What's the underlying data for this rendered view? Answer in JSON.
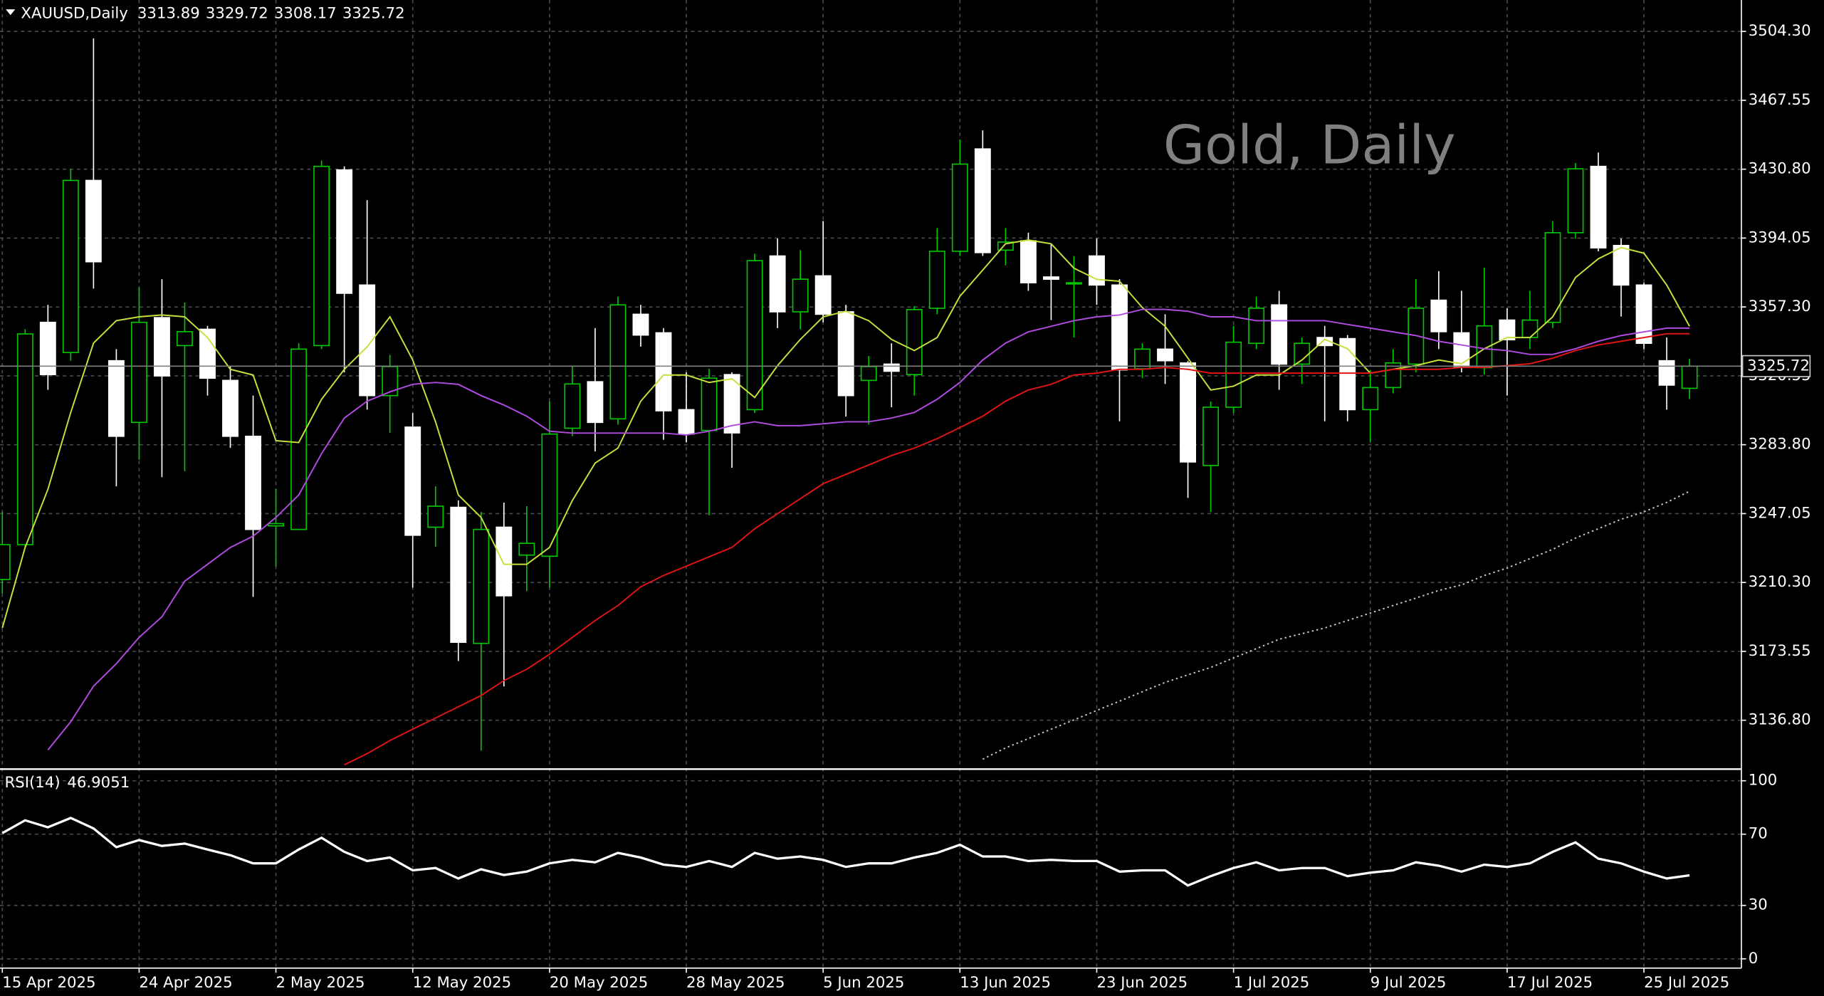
{
  "chart_data": [
    {
      "type": "candlestick",
      "symbol": "XAUUSD,Daily",
      "watermark": "Gold, Daily",
      "categories": [
        "15 Apr 2025",
        null,
        null,
        null,
        null,
        null,
        "24 Apr 2025",
        null,
        null,
        null,
        null,
        null,
        "2 May 2025",
        null,
        null,
        null,
        null,
        null,
        "12 May 2025",
        null,
        null,
        null,
        null,
        null,
        "20 May 2025",
        null,
        null,
        null,
        null,
        null,
        "28 May 2025",
        null,
        null,
        null,
        null,
        null,
        "5 Jun 2025",
        null,
        null,
        null,
        null,
        null,
        "13 Jun 2025",
        null,
        null,
        null,
        null,
        null,
        "23 Jun 2025",
        null,
        null,
        null,
        null,
        null,
        "1 Jul 2025",
        null,
        null,
        null,
        null,
        null,
        "9 Jul 2025",
        null,
        null,
        null,
        null,
        null,
        "17 Jul 2025",
        null,
        null,
        null,
        null,
        null,
        "25 Jul 2025",
        null,
        null
      ],
      "open": [
        3211.9,
        3230.5,
        3349.1,
        3333.0,
        3424.8,
        3328.6,
        3295.7,
        3351.6,
        3336.7,
        3345.4,
        3318.1,
        3288.3,
        3240.5,
        3238.6,
        3336.7,
        3430.4,
        3369.0,
        3310.0,
        3293.2,
        3239.8,
        3250.4,
        3177.8,
        3239.8,
        3224.9,
        3224.3,
        3292.6,
        3317.4,
        3297.6,
        3353.4,
        3343.5,
        3302.5,
        3291.4,
        3321.2,
        3302.5,
        3384.5,
        3354.7,
        3373.9,
        3354.7,
        3318.1,
        3326.8,
        3321.2,
        3356.6,
        3387.0,
        3441.6,
        3387.6,
        3392.6,
        3373.3,
        3369.6,
        3384.5,
        3369.0,
        3324.3,
        3334.8,
        3327.4,
        3272.7,
        3303.8,
        3337.9,
        3358.4,
        3326.8,
        3341.0,
        3340.4,
        3302.5,
        3314.3,
        3326.8,
        3360.9,
        3343.5,
        3324.9,
        3350.3,
        3341.0,
        3349.1,
        3396.9,
        3432.3,
        3390.1,
        3369.0,
        3328.6,
        3313.89
      ],
      "high": [
        3247.9,
        3345.4,
        3358.4,
        3431.0,
        3500.6,
        3334.8,
        3367.7,
        3372.1,
        3359.7,
        3347.2,
        3325.5,
        3310.0,
        3260.3,
        3337.9,
        3435.4,
        3432.3,
        3414.3,
        3331.7,
        3300.7,
        3261.6,
        3254.1,
        3247.9,
        3252.9,
        3251.0,
        3306.9,
        3325.5,
        3346.0,
        3362.8,
        3358.4,
        3346.0,
        3322.4,
        3324.3,
        3322.4,
        3385.7,
        3393.8,
        3387.6,
        3403.1,
        3358.4,
        3331.1,
        3337.9,
        3357.8,
        3399.4,
        3446.6,
        3451.5,
        3399.4,
        3396.9,
        3390.7,
        3384.5,
        3393.8,
        3372.1,
        3337.9,
        3353.4,
        3328.6,
        3306.9,
        3347.2,
        3362.8,
        3365.9,
        3341.0,
        3347.2,
        3342.3,
        3323.7,
        3334.8,
        3372.1,
        3376.4,
        3365.9,
        3378.3,
        3356.6,
        3365.9,
        3403.1,
        3434.1,
        3439.7,
        3393.8,
        3370.2,
        3341.0,
        3329.72
      ],
      "low": [
        3204.5,
        3229.3,
        3313.1,
        3328.6,
        3367.1,
        3261.6,
        3275.8,
        3266.5,
        3269.6,
        3310.0,
        3282.1,
        3202.6,
        3218.7,
        3238.6,
        3334.8,
        3322.4,
        3302.5,
        3290.1,
        3207.6,
        3229.3,
        3168.4,
        3120.6,
        3154.8,
        3205.7,
        3207.6,
        3288.3,
        3280.2,
        3294.5,
        3336.1,
        3286.4,
        3285.2,
        3246.1,
        3271.5,
        3300.7,
        3346.0,
        3345.4,
        3349.1,
        3298.8,
        3294.5,
        3303.8,
        3310.0,
        3353.4,
        3384.5,
        3384.5,
        3379.5,
        3365.9,
        3350.3,
        3341.0,
        3358.4,
        3296.3,
        3319.3,
        3316.2,
        3255.4,
        3247.9,
        3300.7,
        3334.8,
        3313.1,
        3316.2,
        3296.3,
        3296.3,
        3285.2,
        3311.2,
        3322.4,
        3334.8,
        3322.4,
        3321.2,
        3310.0,
        3334.8,
        3346.0,
        3393.8,
        3387.0,
        3352.2,
        3334.8,
        3302.5,
        3308.17
      ],
      "close": [
        3230.5,
        3342.9,
        3321.2,
        3424.8,
        3381.4,
        3288.3,
        3349.1,
        3320.5,
        3344.1,
        3319.3,
        3288.3,
        3238.6,
        3241.7,
        3334.8,
        3432.3,
        3364.6,
        3310.0,
        3325.5,
        3235.5,
        3251.0,
        3178.4,
        3238.6,
        3203.2,
        3231.2,
        3289.5,
        3316.2,
        3295.7,
        3358.4,
        3342.3,
        3301.9,
        3289.5,
        3319.3,
        3290.1,
        3382.0,
        3354.7,
        3372.1,
        3353.4,
        3310.0,
        3325.5,
        3323.0,
        3355.9,
        3387.0,
        3433.5,
        3386.3,
        3391.9,
        3370.2,
        3372.1,
        3370.2,
        3369.0,
        3323.7,
        3334.8,
        3328.6,
        3274.6,
        3303.8,
        3338.5,
        3356.6,
        3326.8,
        3337.9,
        3336.7,
        3302.5,
        3314.3,
        3327.4,
        3356.6,
        3344.1,
        3325.5,
        3347.2,
        3339.8,
        3350.3,
        3396.9,
        3431.0,
        3388.8,
        3369.0,
        3337.9,
        3315.6,
        3325.72
      ],
      "up_color": "#00c800",
      "down_color": "#ffffff",
      "lines": [
        {
          "color": "#c8e03c",
          "values": [
            3186,
            3229,
            3260,
            3301,
            3338,
            3350,
            3352,
            3353,
            3352,
            3341,
            3324,
            3321,
            3286,
            3285,
            3308,
            3324,
            3336,
            3352,
            3329,
            3296,
            3257,
            3245,
            3220,
            3220,
            3229,
            3254,
            3274,
            3282,
            3307,
            3321,
            3321,
            3317,
            3319,
            3309,
            3326,
            3340,
            3352,
            3355,
            3350,
            3340,
            3334,
            3341,
            3363,
            3377,
            3391,
            3393,
            3391,
            3378,
            3372,
            3371,
            3357,
            3347,
            3330,
            3313,
            3315,
            3321,
            3321,
            3329,
            3340,
            3335,
            3322,
            3324,
            3326,
            3329,
            3327,
            3335,
            3341,
            3341,
            3352,
            3373,
            3383,
            3389,
            3386,
            3369,
            3347
          ]
        },
        {
          "color": "#b04ae0",
          "values": [
            null,
            null,
            3121,
            3136,
            3155,
            3167,
            3181,
            3192,
            3211,
            3220,
            3229,
            3235,
            3245,
            3257,
            3279,
            3298,
            3307,
            3312,
            3316,
            3317,
            3316,
            3310,
            3305,
            3299,
            3291,
            3290,
            3290,
            3290,
            3290,
            3290,
            3289,
            3291,
            3294,
            3296,
            3294,
            3294,
            3295,
            3296,
            3296,
            3298,
            3301,
            3308,
            3317,
            3329,
            3338,
            3344,
            3347,
            3350,
            3352,
            3353,
            3356,
            3356,
            3355,
            3352,
            3352,
            3350,
            3350,
            3350,
            3350,
            3348,
            3346,
            3344,
            3342,
            3339,
            3337,
            3335,
            3334,
            3332,
            3332,
            3335,
            3339,
            3342,
            3344,
            3346,
            3346
          ]
        },
        {
          "color": "#e01414",
          "values": [
            null,
            null,
            null,
            null,
            null,
            null,
            null,
            null,
            null,
            null,
            null,
            null,
            null,
            null,
            null,
            3113,
            3119,
            3126,
            3132,
            3138,
            3144,
            3150,
            3158,
            3164,
            3172,
            3181,
            3190,
            3198,
            3208,
            3214,
            3219,
            3224,
            3229,
            3239,
            3247,
            3255,
            3263,
            3268,
            3273,
            3278,
            3282,
            3287,
            3293,
            3299,
            3307,
            3313,
            3316,
            3321,
            3322,
            3324,
            3324,
            3325,
            3324,
            3322,
            3322,
            3322,
            3322,
            3322,
            3322,
            3322,
            3322,
            3324,
            3324,
            3324,
            3325,
            3325,
            3326,
            3327,
            3330,
            3334,
            3337,
            3339,
            3341,
            3343,
            3343
          ]
        },
        {
          "color": "#c8c8c8",
          "style": "dotted",
          "values": [
            null,
            null,
            null,
            null,
            null,
            null,
            null,
            null,
            null,
            null,
            null,
            null,
            null,
            null,
            null,
            null,
            null,
            null,
            null,
            null,
            null,
            null,
            null,
            null,
            null,
            null,
            null,
            null,
            null,
            null,
            null,
            null,
            null,
            null,
            null,
            null,
            null,
            null,
            null,
            null,
            null,
            null,
            null,
            3116,
            3122,
            3127,
            3132,
            3137,
            3142,
            3147,
            3152,
            3157,
            3161,
            3165,
            3170,
            3175,
            3180,
            3183,
            3186,
            3190,
            3194,
            3198,
            3202,
            3206,
            3209,
            3214,
            3218,
            3223,
            3228,
            3234,
            3239,
            3244,
            3248,
            3253,
            3259
          ]
        }
      ],
      "ylim": [
        3111.35,
        3521.06
      ],
      "yticks": [
        {
          "value": 3504.3,
          "label": "3504.30"
        },
        3467.55,
        {
          "value": 3430.8,
          "label": "3430.80"
        },
        3394.05,
        {
          "value": 3357.3,
          "label": "3357.30"
        },
        3320.55,
        {
          "value": 3283.8,
          "label": "3283.80"
        },
        3247.05,
        {
          "value": 3210.3,
          "label": "3210.30"
        },
        3173.55,
        {
          "value": 3136.8,
          "label": "3136.80"
        }
      ],
      "grid": true
    },
    {
      "type": "line",
      "title": "RSI(14)",
      "color": "#ffffff",
      "values": [
        70.6,
        77.8,
        73.9,
        79.1,
        73.2,
        62.7,
        66.7,
        63.4,
        64.7,
        61.4,
        58.2,
        53.6,
        53.6,
        61.4,
        68.0,
        60.1,
        54.9,
        56.9,
        49.7,
        51.0,
        45.1,
        50.3,
        47.1,
        49.0,
        53.6,
        55.6,
        54.2,
        59.5,
        56.9,
        52.9,
        51.6,
        54.9,
        51.6,
        59.5,
        56.2,
        57.5,
        55.6,
        51.6,
        53.6,
        53.6,
        56.9,
        59.5,
        64.1,
        57.5,
        57.5,
        54.9,
        55.6,
        54.9,
        54.9,
        49.0,
        49.7,
        49.7,
        41.2,
        46.4,
        51.0,
        54.2,
        49.7,
        51.0,
        51.0,
        46.4,
        48.4,
        49.7,
        54.2,
        52.3,
        49.0,
        52.9,
        51.6,
        53.6,
        60.1,
        65.4,
        56.2,
        53.6,
        49.0,
        45.1,
        46.9051
      ],
      "ylim": [
        -5.2,
        105.9
      ],
      "yticks": [
        100,
        70,
        30,
        0
      ],
      "grid": true
    }
  ]
}
